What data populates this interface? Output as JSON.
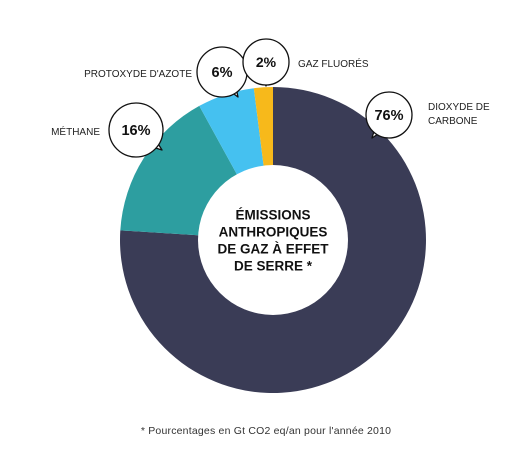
{
  "chart_data": {
    "type": "pie",
    "subtype": "donut",
    "title_lines": [
      "ÉMISSIONS",
      "ANTHROPIQUES",
      "DE GAZ À EFFET",
      "DE SERRE *"
    ],
    "footnote": "* Pourcentages en Gt CO2 eq/an pour l'année 2010",
    "legend": "none",
    "slices": [
      {
        "label_lines": [
          "DIOXYDE DE",
          "CARBONE"
        ],
        "value": 76,
        "value_label": "76%",
        "color": "#3a3c56"
      },
      {
        "label_lines": [
          "MÉTHANE"
        ],
        "value": 16,
        "value_label": "16%",
        "color": "#2d9ea0"
      },
      {
        "label_lines": [
          "PROTOXYDE D'AZOTE"
        ],
        "value": 6,
        "value_label": "6%",
        "color": "#45c1f0"
      },
      {
        "label_lines": [
          "GAZ FLUORÉS"
        ],
        "value": 2,
        "value_label": "2%",
        "color": "#f7b91b"
      }
    ]
  }
}
